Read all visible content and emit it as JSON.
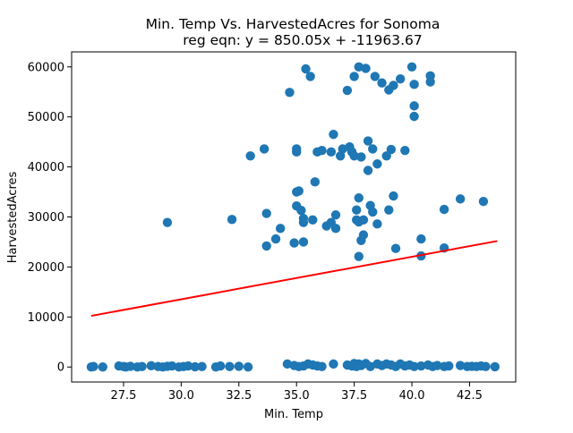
{
  "chart_data": {
    "type": "scatter",
    "title": [
      "Min. Temp Vs. HarvestedAcres for Sonoma",
      "reg eqn: y = 850.05x + -11963.67"
    ],
    "xlabel": "Min. Temp",
    "ylabel": "HarvestedAcres",
    "xlim": [
      25.25,
      44.5
    ],
    "ylim": [
      -3000,
      63000
    ],
    "xticks": [
      27.5,
      30.0,
      32.5,
      35.0,
      37.5,
      40.0,
      42.5
    ],
    "xtick_labels": [
      "27.5",
      "30.0",
      "32.5",
      "35.0",
      "37.5",
      "40.0",
      "42.5"
    ],
    "yticks": [
      0,
      10000,
      20000,
      30000,
      40000,
      50000,
      60000
    ],
    "ytick_labels": [
      "0",
      "10000",
      "20000",
      "30000",
      "40000",
      "50000",
      "60000"
    ],
    "grid": false,
    "colors": {
      "points": "#1f77b4",
      "regression": "#ff0000"
    },
    "regression": {
      "slope": 850.05,
      "intercept": -11963.67,
      "x_range": [
        26.1,
        43.7
      ]
    },
    "points": [
      [
        26.1,
        0
      ],
      [
        26.2,
        100
      ],
      [
        26.6,
        0
      ],
      [
        27.3,
        200
      ],
      [
        27.5,
        100
      ],
      [
        27.6,
        0
      ],
      [
        27.8,
        150
      ],
      [
        28.1,
        0
      ],
      [
        28.3,
        100
      ],
      [
        28.7,
        250
      ],
      [
        29.0,
        100
      ],
      [
        29.2,
        0
      ],
      [
        29.4,
        150
      ],
      [
        29.6,
        200
      ],
      [
        29.9,
        0
      ],
      [
        30.1,
        100
      ],
      [
        30.3,
        200
      ],
      [
        30.6,
        50
      ],
      [
        30.9,
        100
      ],
      [
        31.5,
        0
      ],
      [
        31.7,
        200
      ],
      [
        32.1,
        100
      ],
      [
        32.5,
        150
      ],
      [
        32.9,
        0
      ],
      [
        34.6,
        600
      ],
      [
        34.9,
        300
      ],
      [
        35.1,
        100
      ],
      [
        35.3,
        200
      ],
      [
        35.5,
        600
      ],
      [
        35.7,
        400
      ],
      [
        35.9,
        200
      ],
      [
        36.1,
        100
      ],
      [
        36.6,
        600
      ],
      [
        37.2,
        400
      ],
      [
        37.4,
        200
      ],
      [
        37.5,
        700
      ],
      [
        37.6,
        100
      ],
      [
        37.7,
        600
      ],
      [
        37.8,
        300
      ],
      [
        38.0,
        700
      ],
      [
        38.2,
        100
      ],
      [
        38.5,
        600
      ],
      [
        38.7,
        300
      ],
      [
        38.9,
        600
      ],
      [
        39.1,
        400
      ],
      [
        39.3,
        100
      ],
      [
        39.5,
        600
      ],
      [
        39.7,
        200
      ],
      [
        39.9,
        400
      ],
      [
        40.1,
        100
      ],
      [
        40.4,
        200
      ],
      [
        40.7,
        400
      ],
      [
        40.9,
        100
      ],
      [
        41.1,
        300
      ],
      [
        41.4,
        100
      ],
      [
        41.6,
        200
      ],
      [
        42.1,
        300
      ],
      [
        42.4,
        100
      ],
      [
        42.6,
        150
      ],
      [
        42.8,
        100
      ],
      [
        43.0,
        200
      ],
      [
        43.2,
        100
      ],
      [
        43.6,
        50
      ],
      [
        29.4,
        28900
      ],
      [
        32.2,
        29500
      ],
      [
        33.0,
        42200
      ],
      [
        33.6,
        43600
      ],
      [
        33.7,
        30700
      ],
      [
        33.7,
        24200
      ],
      [
        34.1,
        25600
      ],
      [
        34.3,
        27700
      ],
      [
        34.7,
        54900
      ],
      [
        34.9,
        24800
      ],
      [
        35.0,
        43000
      ],
      [
        35.0,
        43600
      ],
      [
        35.0,
        35000
      ],
      [
        35.1,
        35200
      ],
      [
        35.0,
        32200
      ],
      [
        35.2,
        31300
      ],
      [
        35.3,
        29700
      ],
      [
        35.3,
        28900
      ],
      [
        35.3,
        25000
      ],
      [
        35.4,
        59600
      ],
      [
        35.6,
        58100
      ],
      [
        35.7,
        29400
      ],
      [
        35.8,
        37000
      ],
      [
        35.9,
        43000
      ],
      [
        36.1,
        43300
      ],
      [
        36.3,
        28200
      ],
      [
        36.5,
        43000
      ],
      [
        36.5,
        28900
      ],
      [
        36.6,
        46500
      ],
      [
        36.7,
        30400
      ],
      [
        36.7,
        27700
      ],
      [
        36.9,
        42200
      ],
      [
        37.0,
        43600
      ],
      [
        37.2,
        55300
      ],
      [
        37.3,
        44000
      ],
      [
        37.4,
        43000
      ],
      [
        37.5,
        58100
      ],
      [
        37.5,
        42200
      ],
      [
        37.6,
        31400
      ],
      [
        37.6,
        29400
      ],
      [
        37.7,
        60000
      ],
      [
        37.7,
        33800
      ],
      [
        37.7,
        29000
      ],
      [
        37.8,
        25300
      ],
      [
        37.7,
        22100
      ],
      [
        37.8,
        42000
      ],
      [
        37.9,
        26400
      ],
      [
        37.9,
        29400
      ],
      [
        38.0,
        59700
      ],
      [
        38.1,
        39300
      ],
      [
        38.1,
        45200
      ],
      [
        38.2,
        32300
      ],
      [
        38.3,
        43600
      ],
      [
        38.3,
        31000
      ],
      [
        38.4,
        58100
      ],
      [
        38.5,
        28600
      ],
      [
        38.5,
        40600
      ],
      [
        38.7,
        56800
      ],
      [
        38.9,
        42200
      ],
      [
        39.0,
        31400
      ],
      [
        39.0,
        55400
      ],
      [
        39.1,
        43500
      ],
      [
        39.2,
        34200
      ],
      [
        39.2,
        56300
      ],
      [
        39.3,
        23700
      ],
      [
        39.5,
        57600
      ],
      [
        39.7,
        43300
      ],
      [
        40.0,
        60000
      ],
      [
        40.1,
        56500
      ],
      [
        40.1,
        52200
      ],
      [
        40.1,
        50100
      ],
      [
        40.4,
        25600
      ],
      [
        40.4,
        22200
      ],
      [
        40.8,
        58200
      ],
      [
        40.8,
        57000
      ],
      [
        41.4,
        31500
      ],
      [
        41.4,
        23800
      ],
      [
        42.1,
        33600
      ],
      [
        43.1,
        33100
      ]
    ]
  }
}
